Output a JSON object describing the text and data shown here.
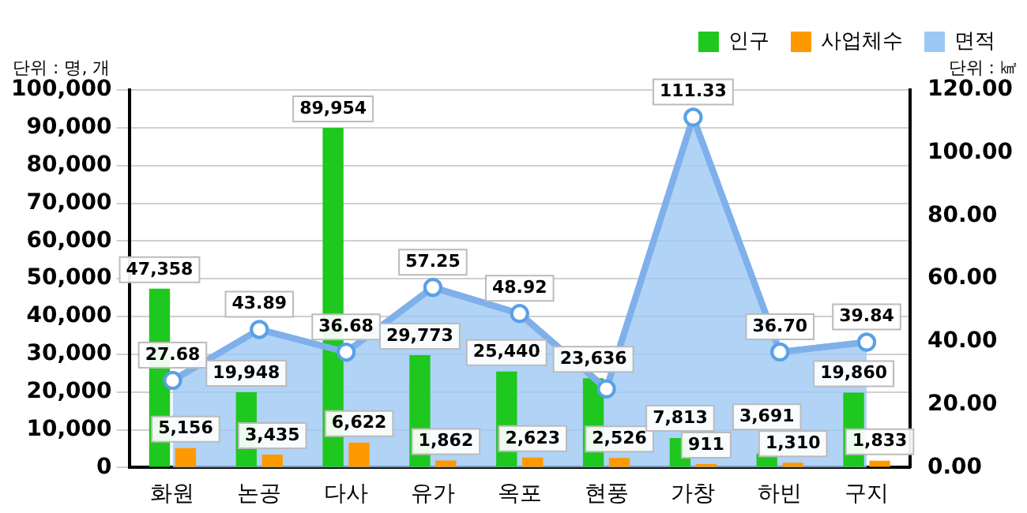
{
  "chart_data": {
    "type": "bar",
    "categories": [
      "화원",
      "논공",
      "다사",
      "유가",
      "옥포",
      "현풍",
      "가창",
      "하빈",
      "구지"
    ],
    "series": [
      {
        "name": "인구",
        "color": "#1ec81e",
        "values": [
          47358,
          19948,
          89954,
          29773,
          25440,
          23636,
          7813,
          3691,
          19860
        ],
        "value_labels": [
          "47,358",
          "19,948",
          "89,954",
          "29,773",
          "25,440",
          "23,636",
          "7,813",
          "3,691",
          "19,860"
        ]
      },
      {
        "name": "사업체수",
        "color": "#ff9900",
        "values": [
          5156,
          3435,
          6622,
          1862,
          2623,
          2526,
          911,
          1310,
          1833
        ],
        "value_labels": [
          "5,156",
          "3,435",
          "6,622",
          "1,862",
          "2,623",
          "2,526",
          "911",
          "1,310",
          "1,833"
        ]
      },
      {
        "name": "면적",
        "type": "area",
        "axis": "y2",
        "color": "#9cc8f4",
        "values": [
          27.68,
          43.89,
          36.68,
          57.25,
          48.92,
          25,
          111.33,
          36.7,
          39.84
        ],
        "value_labels": [
          "27.68",
          "43.89",
          "36.68",
          "57.25",
          "48.92",
          null,
          "111.33",
          "36.70",
          "39.84"
        ]
      }
    ],
    "ylim": [
      0,
      100000
    ],
    "yticks": [
      {
        "value": 0,
        "label": "0"
      },
      {
        "value": 10000,
        "label": "10,000"
      },
      {
        "value": 20000,
        "label": "20,000"
      },
      {
        "value": 30000,
        "label": "30,000"
      },
      {
        "value": 40000,
        "label": "40,000"
      },
      {
        "value": 50000,
        "label": "50,000"
      },
      {
        "value": 60000,
        "label": "60,000"
      },
      {
        "value": 70000,
        "label": "70,000"
      },
      {
        "value": 80000,
        "label": "80,000"
      },
      {
        "value": 90000,
        "label": "90,000"
      },
      {
        "value": 100000,
        "label": "100,000"
      }
    ],
    "y2lim": [
      0,
      120
    ],
    "y2ticks": [
      {
        "value": 0,
        "label": "0.00"
      },
      {
        "value": 20,
        "label": "20.00"
      },
      {
        "value": 40,
        "label": "40.00"
      },
      {
        "value": 60,
        "label": "60.00"
      },
      {
        "value": 80,
        "label": "80.00"
      },
      {
        "value": 100,
        "label": "100.00"
      },
      {
        "value": 120,
        "label": "120.00"
      }
    ],
    "grid": "y",
    "legend": "top right",
    "marker": "circle",
    "annotations": [
      "단위 : 명, 개",
      "단위 : ㎢"
    ]
  }
}
